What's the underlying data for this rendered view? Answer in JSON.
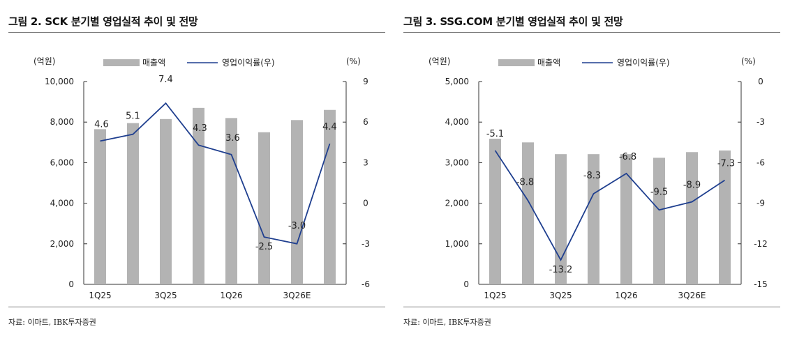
{
  "charts": [
    {
      "title": "그림 2. SCK 분기별 영업실적 추이 및 전망",
      "source": "자료: 이마트, IBK투자증권",
      "chart_data": {
        "type": "bar+line",
        "left_unit": "(억원)",
        "right_unit": "(%)",
        "legend": {
          "bar": "매출액",
          "line": "영업이익률(우)",
          "placement": "top"
        },
        "categories": [
          "1Q25",
          "2Q25",
          "3Q25",
          "4Q25",
          "1Q26",
          "2Q26",
          "3Q26E",
          "4Q26E"
        ],
        "x_tick_labels": [
          "1Q25",
          "",
          "3Q25",
          "",
          "1Q26",
          "",
          "3Q26E",
          ""
        ],
        "series": [
          {
            "values": [
              7650,
              7950,
              8150,
              8700,
              8200,
              7500,
              8100,
              8600
            ],
            "axis": "left",
            "color": "#b3b3b3",
            "kind": "bar"
          },
          {
            "values": [
              4.6,
              5.1,
              7.4,
              4.3,
              3.6,
              -2.5,
              -3.0,
              4.4
            ],
            "axis": "right",
            "color": "#1f3f8f",
            "kind": "line"
          }
        ],
        "data_labels": [
          "4.6",
          "5.1",
          "7.4",
          "4.3",
          "3.6",
          "-2.5",
          "-3.0",
          "4.4"
        ],
        "left_ticks": [
          "10,000",
          "8,000",
          "6,000",
          "4,000",
          "2,000",
          "0"
        ],
        "right_ticks": [
          "9",
          "6",
          "3",
          "0",
          "-3",
          "-6"
        ],
        "ylim_left": [
          0,
          10000
        ],
        "ylim_right": [
          -6,
          9
        ],
        "grid": false
      }
    },
    {
      "title": "그림 3. SSG.COM 분기별 영업실적 추이 및 전망",
      "source": "자료: 이마트, IBK투자증권",
      "chart_data": {
        "type": "bar+line",
        "left_unit": "(억원)",
        "right_unit": "(%)",
        "legend": {
          "bar": "매출액",
          "line": "영업이익률(우)",
          "placement": "top"
        },
        "categories": [
          "1Q25",
          "2Q25",
          "3Q25",
          "4Q25",
          "1Q26",
          "2Q26",
          "3Q26E",
          "4Q26E"
        ],
        "x_tick_labels": [
          "1Q25",
          "",
          "3Q25",
          "",
          "1Q26",
          "",
          "3Q26E",
          ""
        ],
        "series": [
          {
            "values": [
              3590,
              3500,
              3210,
              3210,
              3210,
              3120,
              3260,
              3300
            ],
            "axis": "left",
            "color": "#b3b3b3",
            "kind": "bar"
          },
          {
            "values": [
              -5.1,
              -8.8,
              -13.2,
              -8.3,
              -6.8,
              -9.5,
              -8.9,
              -7.3
            ],
            "axis": "right",
            "color": "#1f3f8f",
            "kind": "line"
          }
        ],
        "data_labels": [
          "-5.1",
          "-8.8",
          "-13.2",
          "-8.3",
          "-6.8",
          "-9.5",
          "-8.9",
          "-7.3"
        ],
        "left_ticks": [
          "5,000",
          "4,000",
          "3,000",
          "2,000",
          "1,000",
          "0"
        ],
        "right_ticks": [
          "0",
          "-3",
          "-6",
          "-9",
          "-12",
          "-15"
        ],
        "ylim_left": [
          0,
          5000
        ],
        "ylim_right": [
          -15,
          0
        ],
        "grid": false
      }
    }
  ]
}
